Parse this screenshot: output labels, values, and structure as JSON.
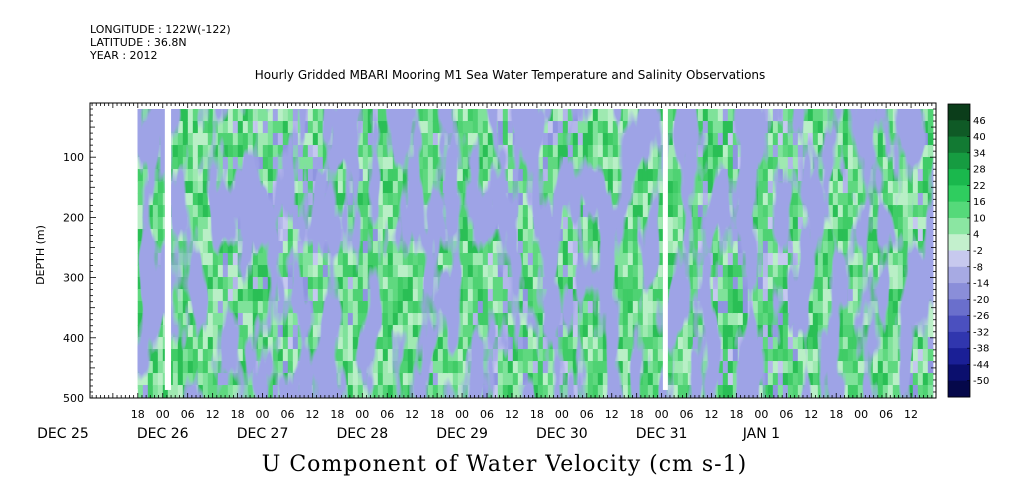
{
  "header": {
    "longitude": "LONGITUDE : 122W(-122)",
    "latitude": "LATITUDE : 36.8N",
    "year": "YEAR : 2012"
  },
  "chart_data": {
    "type": "heatmap",
    "title": "Hourly Gridded MBARI Mooring M1 Sea Water Temperature and Salinity Observations",
    "variable_label": "U Component of Water Velocity (cm s-1)",
    "ylabel": "DEPTH (m)",
    "y_ticks": [
      "100",
      "200",
      "300",
      "400",
      "500"
    ],
    "y_tick_values": [
      100,
      200,
      300,
      400,
      500
    ],
    "ylim": [
      500,
      10
    ],
    "depth_range": [
      20,
      485
    ],
    "x_hour_labels": [
      "18",
      "00",
      "06",
      "12",
      "18",
      "00",
      "06",
      "12",
      "18",
      "00",
      "06",
      "12",
      "18",
      "00",
      "06",
      "12",
      "18",
      "00",
      "06",
      "12",
      "18",
      "00",
      "06",
      "12",
      "18",
      "00",
      "06",
      "12",
      "18",
      "00",
      "06",
      "12"
    ],
    "x_hour_hours": [
      18,
      24,
      30,
      36,
      42,
      48,
      54,
      60,
      66,
      72,
      78,
      84,
      90,
      96,
      102,
      108,
      114,
      120,
      126,
      132,
      138,
      144,
      150,
      156,
      162,
      168,
      174,
      180,
      186,
      192,
      198,
      204
    ],
    "x_date_labels": [
      "DEC 25",
      "DEC 26",
      "DEC 27",
      "DEC 28",
      "DEC 29",
      "DEC 30",
      "DEC 31",
      "JAN  1"
    ],
    "x_date_hours": [
      0,
      24,
      48,
      72,
      96,
      120,
      144,
      168
    ],
    "xlim": [
      6.5,
      210
    ],
    "data_gaps_hours": [
      [
        24.5,
        26
      ],
      [
        144.3,
        145.5
      ]
    ],
    "colorbar": {
      "labels": [
        "46",
        "40",
        "34",
        "28",
        "22",
        "16",
        "10",
        "4",
        "-2",
        "-8",
        "-14",
        "-20",
        "-26",
        "-32",
        "-38",
        "-44",
        "-50"
      ],
      "levels": [
        46,
        40,
        34,
        28,
        22,
        16,
        10,
        4,
        -2,
        -8,
        -14,
        -20,
        -26,
        -32,
        -38,
        -44,
        -50
      ],
      "colors": [
        "#0b3d1a",
        "#0f5a26",
        "#127a33",
        "#169c41",
        "#1ab84d",
        "#2fcd5f",
        "#55d97a",
        "#8be6a2",
        "#c3f0cd",
        "#c7c9ee",
        "#a7aae3",
        "#8a8ed9",
        "#6a6fcc",
        "#4b50bf",
        "#3036ae",
        "#1a1f96",
        "#0b0f6e",
        "#05084a"
      ]
    }
  }
}
